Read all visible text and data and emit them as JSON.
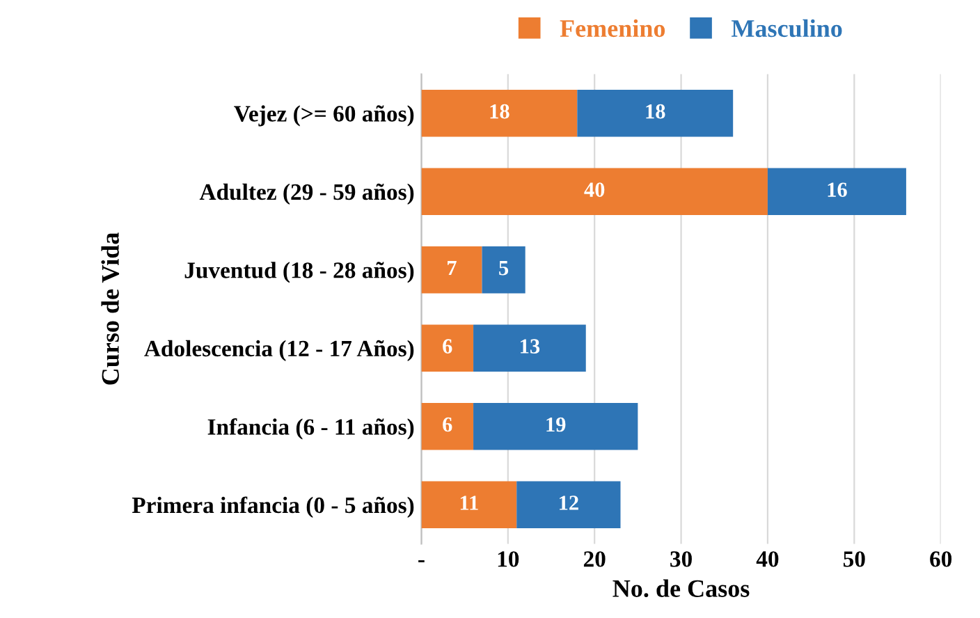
{
  "chart_data": {
    "type": "bar",
    "orientation": "horizontal",
    "stacked": true,
    "categories": [
      "Vejez (>= 60 años)",
      "Adultez (29 - 59 años)",
      "Juventud (18 - 28 años)",
      "Adolescencia (12 - 17 Años)",
      "Infancia (6 - 11 años)",
      "Primera infancia (0 - 5 años)"
    ],
    "series": [
      {
        "name": "Femenino",
        "color": "#ed7d31",
        "values": [
          18,
          40,
          7,
          6,
          6,
          11
        ]
      },
      {
        "name": "Masculino",
        "color": "#2e75b6",
        "values": [
          18,
          16,
          5,
          13,
          19,
          12
        ]
      }
    ],
    "xlabel": "No. de Casos",
    "ylabel": "Curso de Vida",
    "xlim": [
      0,
      60
    ],
    "xticks": [
      {
        "value": 0,
        "label": "-"
      },
      10,
      20,
      30,
      40,
      50,
      60
    ],
    "grid": "x",
    "legend": "top",
    "data_labels": true
  }
}
